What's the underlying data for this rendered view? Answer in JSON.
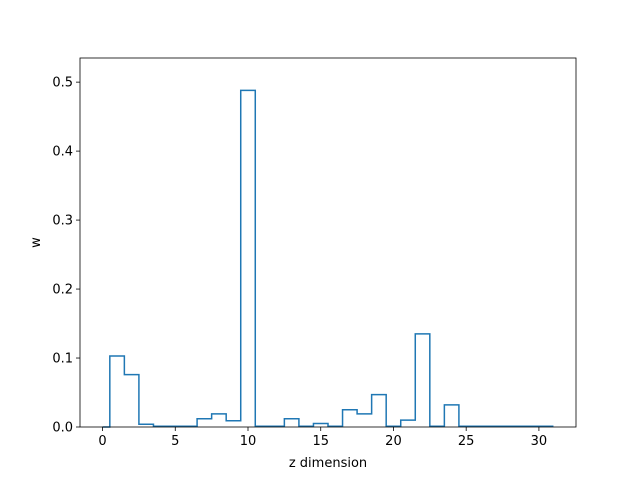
{
  "chart_data": {
    "type": "step",
    "title": "",
    "xlabel": "z dimension",
    "ylabel": "w",
    "xlim": [
      -1.55,
      32.55
    ],
    "ylim": [
      0,
      0.535
    ],
    "xticks": [
      0,
      5,
      10,
      15,
      20,
      25,
      30
    ],
    "yticks": [
      0.0,
      0.1,
      0.2,
      0.3,
      0.4,
      0.5
    ],
    "grid": false,
    "legend": "none",
    "line_color": "#1f77b4",
    "x": [
      0,
      1,
      2,
      3,
      4,
      5,
      6,
      7,
      8,
      9,
      10,
      11,
      12,
      13,
      14,
      15,
      16,
      17,
      18,
      19,
      20,
      21,
      22,
      23,
      24,
      25,
      26,
      27,
      28,
      29,
      30,
      31
    ],
    "values": [
      0.0,
      0.103,
      0.076,
      0.004,
      0.001,
      0.001,
      0.001,
      0.012,
      0.019,
      0.009,
      0.488,
      0.001,
      0.001,
      0.012,
      0.001,
      0.005,
      0.001,
      0.025,
      0.019,
      0.047,
      0.001,
      0.01,
      0.135,
      0.001,
      0.032,
      0.001,
      0.001,
      0.001,
      0.001,
      0.001,
      0.001,
      0.001
    ]
  }
}
